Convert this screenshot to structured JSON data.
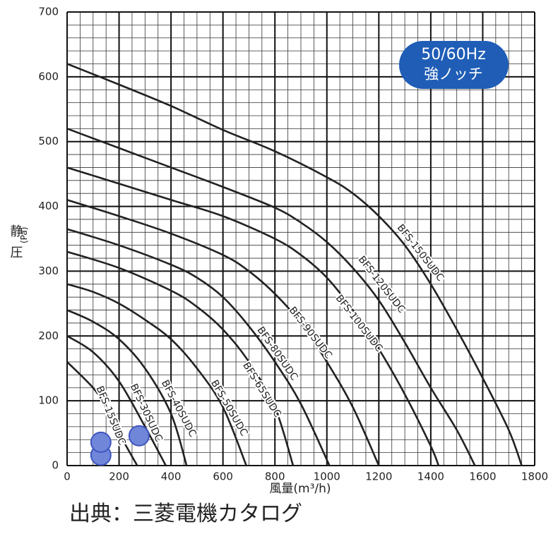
{
  "chart_data": {
    "type": "line",
    "x_label": "風量(m³/h)",
    "y_label": "静圧",
    "y_label_unit": "(Pa)",
    "annotations": [
      "50/60Hz",
      "強ノッチ"
    ],
    "source": "出典：三菱電機カタログ",
    "xlim": [
      0,
      1800
    ],
    "ylim": [
      0,
      700
    ],
    "xticks": [
      0,
      200,
      400,
      600,
      800,
      1000,
      1200,
      1400,
      1600,
      1800
    ],
    "yticks": [
      0,
      100,
      200,
      300,
      400,
      500,
      600,
      700
    ],
    "grid": true,
    "minor_grid": {
      "x": 50,
      "y": 20
    },
    "series": [
      {
        "name": "BFS-15SUDC",
        "color": "#222222",
        "x": [
          0,
          100,
          150,
          200,
          270
        ],
        "values": [
          160,
          120,
          90,
          50,
          0
        ]
      },
      {
        "name": "BFS-30SUDC",
        "color": "#222222",
        "x": [
          0,
          100,
          200,
          300,
          380
        ],
        "values": [
          200,
          175,
          130,
          60,
          0
        ]
      },
      {
        "name": "BFS-40SUDC",
        "color": "#222222",
        "x": [
          0,
          100,
          200,
          300,
          400,
          460
        ],
        "values": [
          240,
          222,
          195,
          150,
          80,
          0
        ]
      },
      {
        "name": "BFS-50SUDC",
        "color": "#222222",
        "x": [
          0,
          100,
          200,
          300,
          400,
          500,
          600,
          690
        ],
        "values": [
          280,
          268,
          250,
          225,
          195,
          150,
          90,
          0
        ]
      },
      {
        "name": "BFS-65SUDC",
        "color": "#222222",
        "x": [
          0,
          200,
          400,
          500,
          600,
          700,
          800,
          870
        ],
        "values": [
          330,
          305,
          270,
          245,
          210,
          160,
          90,
          0
        ]
      },
      {
        "name": "BFS-80SUDC",
        "color": "#222222",
        "x": [
          0,
          200,
          400,
          500,
          600,
          700,
          800,
          900,
          1010
        ],
        "values": [
          365,
          340,
          310,
          290,
          260,
          215,
          160,
          95,
          0
        ]
      },
      {
        "name": "BFS-90SUDC",
        "color": "#222222",
        "x": [
          0,
          200,
          400,
          600,
          700,
          800,
          900,
          1000,
          1100,
          1200
        ],
        "values": [
          410,
          385,
          358,
          325,
          300,
          265,
          220,
          160,
          90,
          0
        ]
      },
      {
        "name": "BFS-100SUDC",
        "color": "#222222",
        "x": [
          0,
          200,
          400,
          600,
          800,
          900,
          1000,
          1100,
          1200,
          1300,
          1400,
          1430
        ],
        "values": [
          460,
          435,
          410,
          385,
          350,
          325,
          290,
          240,
          180,
          110,
          30,
          0
        ]
      },
      {
        "name": "BFS-120SUDC",
        "color": "#222222",
        "x": [
          0,
          200,
          400,
          600,
          800,
          900,
          1000,
          1100,
          1200,
          1300,
          1400,
          1500,
          1570
        ],
        "values": [
          520,
          490,
          460,
          430,
          398,
          375,
          345,
          305,
          255,
          190,
          120,
          55,
          0
        ]
      },
      {
        "name": "BFS-150SUDC",
        "color": "#222222",
        "x": [
          0,
          200,
          400,
          600,
          800,
          1000,
          1100,
          1200,
          1300,
          1400,
          1500,
          1600,
          1700,
          1750
        ],
        "values": [
          620,
          588,
          555,
          518,
          485,
          445,
          420,
          385,
          340,
          280,
          210,
          135,
          55,
          0
        ]
      }
    ],
    "points": {
      "color": "#7086d9",
      "x": [
        130,
        130,
        277
      ],
      "values": [
        16,
        36,
        46
      ]
    }
  }
}
